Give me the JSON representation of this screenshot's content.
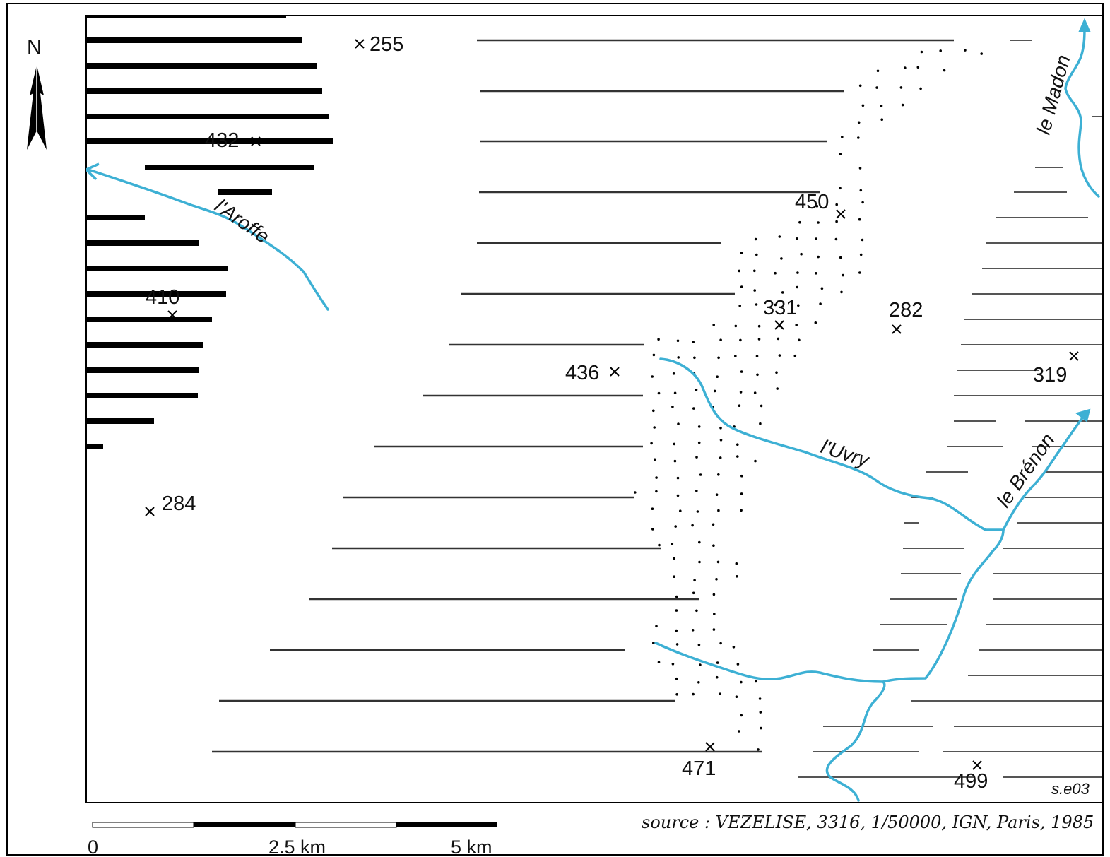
{
  "compass": {
    "label": "N"
  },
  "points": [
    {
      "id": "255",
      "label": "255"
    },
    {
      "id": "432",
      "label": "432"
    },
    {
      "id": "410",
      "label": "410"
    },
    {
      "id": "284",
      "label": "284"
    },
    {
      "id": "450",
      "label": "450"
    },
    {
      "id": "331",
      "label": "331"
    },
    {
      "id": "282",
      "label": "282"
    },
    {
      "id": "436",
      "label": "436"
    },
    {
      "id": "319",
      "label": "319"
    },
    {
      "id": "471",
      "label": "471"
    },
    {
      "id": "499",
      "label": "499"
    }
  ],
  "rivers": {
    "aroffe": "l'Aroffe",
    "uvry": "l'Uvry",
    "brenon": "le Brénon",
    "madon": "le Madon"
  },
  "colors": {
    "river": "#3db0d4",
    "ink": "#000000",
    "hatch_light": "#333333"
  },
  "code": "s.e03",
  "source": "source : VEZELISE, 3316, 1/50000, IGN, Paris, 1985",
  "scale": {
    "labels": [
      "0",
      "2.5 km",
      "5 km"
    ]
  }
}
